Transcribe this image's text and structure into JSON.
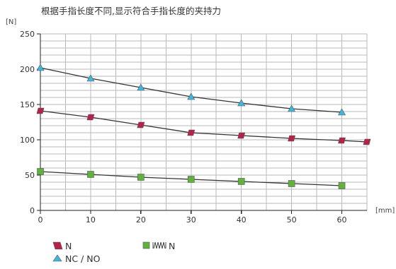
{
  "chart_data": {
    "type": "line",
    "title": "根据手指长度不同,显示符合手指长度的夹持力",
    "ylabel": "[N]",
    "xlabel": "[mm]",
    "xlim": [
      0,
      65
    ],
    "ylim": [
      0,
      250
    ],
    "grid": true,
    "x_ticks": [
      0,
      10,
      20,
      30,
      40,
      50,
      60
    ],
    "x_tick_labels": [
      "0",
      "10",
      "20",
      "30",
      "40",
      "50",
      "60"
    ],
    "y_ticks": [
      0,
      50,
      100,
      150,
      200,
      250
    ],
    "y_tick_labels": [
      "0",
      "50",
      "100",
      "150",
      "200",
      "250"
    ],
    "legend_position": "bottom-left",
    "series": [
      {
        "name": "N",
        "marker": "parallelogram",
        "color": "#b5234a",
        "x": [
          0,
          10,
          20,
          30,
          40,
          50,
          60,
          65
        ],
        "values": [
          141,
          132,
          121,
          110,
          106,
          102,
          99,
          97
        ]
      },
      {
        "name": "NC / NO",
        "marker": "triangle",
        "color": "#3fb6e0",
        "x": [
          0,
          10,
          20,
          30,
          40,
          50,
          60
        ],
        "values": [
          202,
          187,
          174,
          161,
          152,
          144,
          139
        ]
      },
      {
        "name": "N",
        "marker": "square",
        "color": "#5fb33c",
        "legend_icon": "spring",
        "x": [
          0,
          10,
          20,
          30,
          40,
          50,
          60
        ],
        "values": [
          55,
          51,
          47,
          44,
          41,
          38,
          35
        ]
      }
    ]
  }
}
